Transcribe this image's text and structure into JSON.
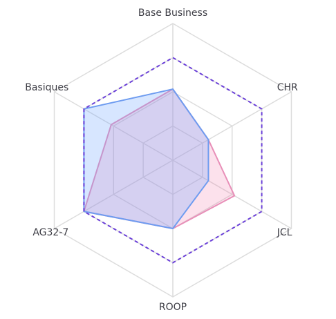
{
  "chart_data": {
    "type": "radar",
    "categories": [
      "Base Business",
      "CHR",
      "JCL",
      "ROOP",
      "AG32-7",
      "Basiques"
    ],
    "ylim": [
      0,
      100
    ],
    "yticks": [
      25,
      50,
      75,
      100
    ],
    "grid": true,
    "series": [
      {
        "color": "#e88fb8",
        "fill": "rgba(240,120,170,0.22)",
        "dashed": false,
        "values": [
          52,
          30,
          52,
          50,
          75,
          52
        ]
      },
      {
        "color": "#6e9cf0",
        "fill": "rgba(110,165,255,0.28)",
        "dashed": false,
        "values": [
          52,
          30,
          30,
          50,
          75,
          75
        ]
      },
      {
        "color": "#6a3fd8",
        "fill": "none",
        "dashed": true,
        "values": [
          75,
          75,
          75,
          75,
          75,
          75
        ]
      }
    ]
  }
}
